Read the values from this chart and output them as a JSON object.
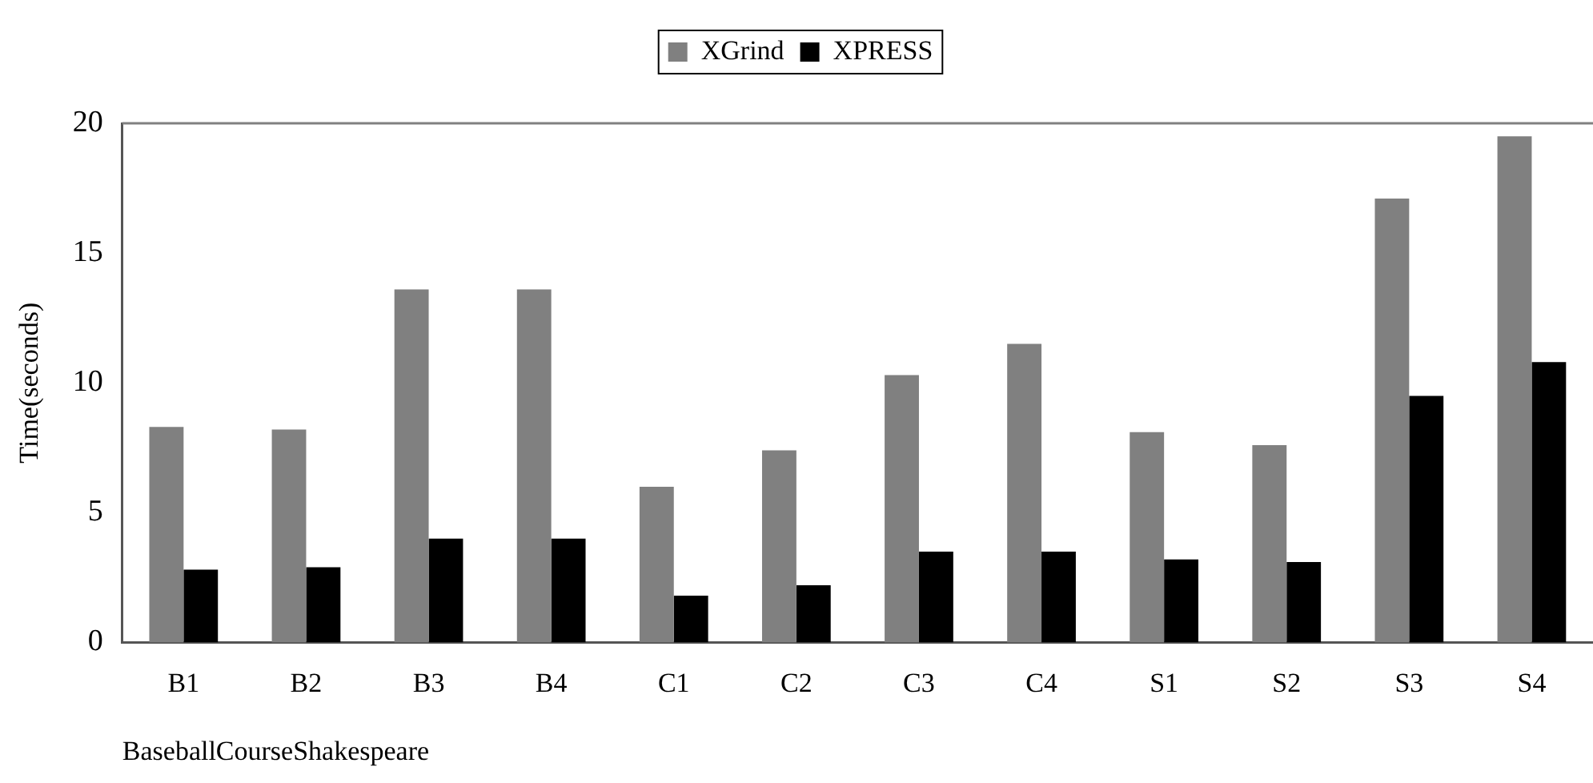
{
  "chart_data": {
    "type": "bar",
    "xlabel": "BaseballCourseShakespeare",
    "ylabel": "Time(seconds)",
    "categories": [
      "B1",
      "B2",
      "B3",
      "B4",
      "C1",
      "C2",
      "C3",
      "C4",
      "S1",
      "S2",
      "S3",
      "S4"
    ],
    "series": [
      {
        "name": "XGrind",
        "color": "#808080",
        "values": [
          8.3,
          8.2,
          13.6,
          13.6,
          6.0,
          7.4,
          10.3,
          11.5,
          8.1,
          7.6,
          17.1,
          19.5
        ]
      },
      {
        "name": "XPRESS",
        "color": "#000000",
        "values": [
          2.8,
          2.9,
          4.0,
          4.0,
          1.8,
          2.2,
          3.5,
          3.5,
          3.2,
          3.1,
          9.5,
          10.8
        ]
      }
    ],
    "ylim": [
      0,
      20
    ],
    "yticks": [
      0,
      5,
      10,
      15,
      20
    ],
    "grid": false,
    "legend": "top"
  }
}
